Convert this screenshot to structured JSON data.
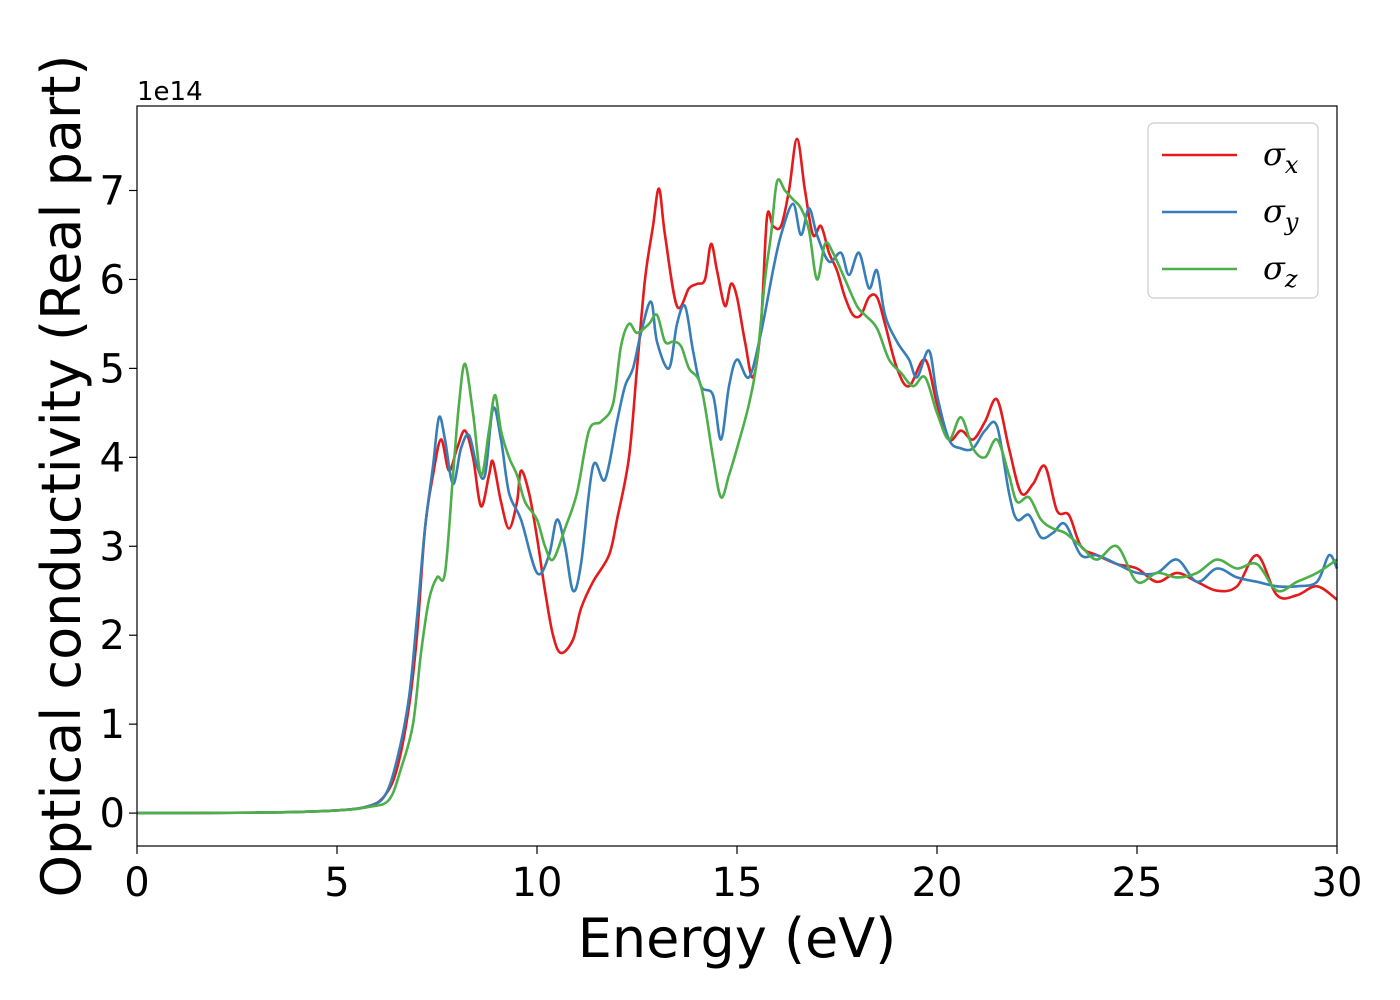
{
  "chart_data": {
    "type": "line",
    "title": "",
    "xlabel": "Energy (eV)",
    "ylabel": "Optical conductivity (Real part)",
    "y_offset_text": "1e14",
    "xlim": [
      0,
      30
    ],
    "ylim": [
      -0.37,
      7.95
    ],
    "xticks": [
      0,
      5,
      10,
      15,
      20,
      25,
      30
    ],
    "yticks": [
      0,
      1,
      2,
      3,
      4,
      5,
      6,
      7
    ],
    "grid": false,
    "legend_position": "top-right",
    "series": [
      {
        "name": "σx",
        "label_base": "σ",
        "label_sub": "x",
        "color": "#e41a1c",
        "points": [
          [
            0,
            0
          ],
          [
            3,
            0.005
          ],
          [
            5,
            0.03
          ],
          [
            5.8,
            0.08
          ],
          [
            6.2,
            0.2
          ],
          [
            6.5,
            0.5
          ],
          [
            6.8,
            1.2
          ],
          [
            7.0,
            2.0
          ],
          [
            7.2,
            3.2
          ],
          [
            7.4,
            3.8
          ],
          [
            7.6,
            4.2
          ],
          [
            7.8,
            3.85
          ],
          [
            8.0,
            4.1
          ],
          [
            8.2,
            4.3
          ],
          [
            8.4,
            4.0
          ],
          [
            8.6,
            3.45
          ],
          [
            8.8,
            3.8
          ],
          [
            8.9,
            3.95
          ],
          [
            9.1,
            3.5
          ],
          [
            9.3,
            3.2
          ],
          [
            9.5,
            3.5
          ],
          [
            9.6,
            3.85
          ],
          [
            9.8,
            3.6
          ],
          [
            10.0,
            3.1
          ],
          [
            10.2,
            2.5
          ],
          [
            10.4,
            2.0
          ],
          [
            10.6,
            1.8
          ],
          [
            10.9,
            1.95
          ],
          [
            11.1,
            2.3
          ],
          [
            11.4,
            2.6
          ],
          [
            11.8,
            2.9
          ],
          [
            12.0,
            3.3
          ],
          [
            12.3,
            4.0
          ],
          [
            12.5,
            5.0
          ],
          [
            12.7,
            6.0
          ],
          [
            12.9,
            6.6
          ],
          [
            13.05,
            7.02
          ],
          [
            13.2,
            6.5
          ],
          [
            13.5,
            5.7
          ],
          [
            13.8,
            5.9
          ],
          [
            14.0,
            5.95
          ],
          [
            14.2,
            6.0
          ],
          [
            14.35,
            6.4
          ],
          [
            14.5,
            6.1
          ],
          [
            14.7,
            5.7
          ],
          [
            14.85,
            5.95
          ],
          [
            15.0,
            5.8
          ],
          [
            15.2,
            5.3
          ],
          [
            15.4,
            4.9
          ],
          [
            15.6,
            5.5
          ],
          [
            15.75,
            6.7
          ],
          [
            15.9,
            6.6
          ],
          [
            16.1,
            6.6
          ],
          [
            16.3,
            7.0
          ],
          [
            16.5,
            7.58
          ],
          [
            16.7,
            7.0
          ],
          [
            16.9,
            6.5
          ],
          [
            17.1,
            6.6
          ],
          [
            17.3,
            6.3
          ],
          [
            17.5,
            6.1
          ],
          [
            17.7,
            5.8
          ],
          [
            17.9,
            5.6
          ],
          [
            18.1,
            5.6
          ],
          [
            18.3,
            5.8
          ],
          [
            18.5,
            5.8
          ],
          [
            18.7,
            5.5
          ],
          [
            19.0,
            5.0
          ],
          [
            19.3,
            4.8
          ],
          [
            19.7,
            5.1
          ],
          [
            20.0,
            4.6
          ],
          [
            20.3,
            4.2
          ],
          [
            20.6,
            4.3
          ],
          [
            20.9,
            4.2
          ],
          [
            21.2,
            4.4
          ],
          [
            21.5,
            4.65
          ],
          [
            21.8,
            4.1
          ],
          [
            22.1,
            3.6
          ],
          [
            22.4,
            3.7
          ],
          [
            22.7,
            3.9
          ],
          [
            23.0,
            3.4
          ],
          [
            23.3,
            3.35
          ],
          [
            23.6,
            3.0
          ],
          [
            24.0,
            2.9
          ],
          [
            24.5,
            2.8
          ],
          [
            25.0,
            2.75
          ],
          [
            25.5,
            2.6
          ],
          [
            26.0,
            2.7
          ],
          [
            26.5,
            2.6
          ],
          [
            27.0,
            2.5
          ],
          [
            27.5,
            2.55
          ],
          [
            28.0,
            2.9
          ],
          [
            28.5,
            2.45
          ],
          [
            29.0,
            2.45
          ],
          [
            29.5,
            2.55
          ],
          [
            30.0,
            2.4
          ]
        ]
      },
      {
        "name": "σy",
        "label_base": "σ",
        "label_sub": "y",
        "color": "#377eb8",
        "points": [
          [
            0,
            0
          ],
          [
            3,
            0.005
          ],
          [
            5,
            0.03
          ],
          [
            5.8,
            0.08
          ],
          [
            6.2,
            0.2
          ],
          [
            6.5,
            0.6
          ],
          [
            6.8,
            1.3
          ],
          [
            7.0,
            2.2
          ],
          [
            7.2,
            3.2
          ],
          [
            7.4,
            3.9
          ],
          [
            7.55,
            4.45
          ],
          [
            7.7,
            4.2
          ],
          [
            7.9,
            3.7
          ],
          [
            8.1,
            4.1
          ],
          [
            8.3,
            4.25
          ],
          [
            8.5,
            3.9
          ],
          [
            8.7,
            3.8
          ],
          [
            8.9,
            4.55
          ],
          [
            9.1,
            4.2
          ],
          [
            9.3,
            3.6
          ],
          [
            9.6,
            3.3
          ],
          [
            10.0,
            2.7
          ],
          [
            10.3,
            2.9
          ],
          [
            10.5,
            3.3
          ],
          [
            10.7,
            3.0
          ],
          [
            10.9,
            2.5
          ],
          [
            11.1,
            2.8
          ],
          [
            11.4,
            3.9
          ],
          [
            11.7,
            3.75
          ],
          [
            12.0,
            4.4
          ],
          [
            12.2,
            4.8
          ],
          [
            12.4,
            5.0
          ],
          [
            12.6,
            5.4
          ],
          [
            12.85,
            5.75
          ],
          [
            13.0,
            5.3
          ],
          [
            13.3,
            5.0
          ],
          [
            13.5,
            5.5
          ],
          [
            13.7,
            5.7
          ],
          [
            13.9,
            5.2
          ],
          [
            14.1,
            4.8
          ],
          [
            14.4,
            4.7
          ],
          [
            14.6,
            4.2
          ],
          [
            14.8,
            4.8
          ],
          [
            15.0,
            5.1
          ],
          [
            15.3,
            4.9
          ],
          [
            15.6,
            5.4
          ],
          [
            15.9,
            6.1
          ],
          [
            16.1,
            6.5
          ],
          [
            16.4,
            6.85
          ],
          [
            16.6,
            6.5
          ],
          [
            16.8,
            6.8
          ],
          [
            17.0,
            6.5
          ],
          [
            17.3,
            6.2
          ],
          [
            17.6,
            6.3
          ],
          [
            17.8,
            6.05
          ],
          [
            18.05,
            6.3
          ],
          [
            18.3,
            5.9
          ],
          [
            18.5,
            6.1
          ],
          [
            18.7,
            5.6
          ],
          [
            19.0,
            5.3
          ],
          [
            19.3,
            5.1
          ],
          [
            19.5,
            4.9
          ],
          [
            19.8,
            5.2
          ],
          [
            20.0,
            4.7
          ],
          [
            20.3,
            4.2
          ],
          [
            20.6,
            4.1
          ],
          [
            20.9,
            4.1
          ],
          [
            21.2,
            4.3
          ],
          [
            21.5,
            4.35
          ],
          [
            21.8,
            3.6
          ],
          [
            22.0,
            3.3
          ],
          [
            22.3,
            3.35
          ],
          [
            22.6,
            3.1
          ],
          [
            22.9,
            3.15
          ],
          [
            23.2,
            3.25
          ],
          [
            23.6,
            2.9
          ],
          [
            24.0,
            2.9
          ],
          [
            24.5,
            2.8
          ],
          [
            25.0,
            2.7
          ],
          [
            25.5,
            2.7
          ],
          [
            26.0,
            2.85
          ],
          [
            26.5,
            2.6
          ],
          [
            27.0,
            2.75
          ],
          [
            27.5,
            2.65
          ],
          [
            28.0,
            2.6
          ],
          [
            28.5,
            2.55
          ],
          [
            29.0,
            2.55
          ],
          [
            29.5,
            2.6
          ],
          [
            29.8,
            2.9
          ],
          [
            30.0,
            2.75
          ]
        ]
      },
      {
        "name": "σz",
        "label_base": "σ",
        "label_sub": "z",
        "color": "#4daf4a",
        "points": [
          [
            0,
            0
          ],
          [
            3,
            0.005
          ],
          [
            5,
            0.03
          ],
          [
            5.8,
            0.07
          ],
          [
            6.3,
            0.15
          ],
          [
            6.6,
            0.5
          ],
          [
            6.9,
            1.0
          ],
          [
            7.1,
            1.8
          ],
          [
            7.3,
            2.4
          ],
          [
            7.5,
            2.65
          ],
          [
            7.7,
            2.7
          ],
          [
            7.9,
            3.8
          ],
          [
            8.05,
            4.6
          ],
          [
            8.2,
            5.05
          ],
          [
            8.4,
            4.5
          ],
          [
            8.6,
            3.8
          ],
          [
            8.8,
            4.3
          ],
          [
            8.95,
            4.7
          ],
          [
            9.1,
            4.3
          ],
          [
            9.3,
            4.0
          ],
          [
            9.5,
            3.8
          ],
          [
            9.7,
            3.5
          ],
          [
            10.0,
            3.3
          ],
          [
            10.2,
            3.0
          ],
          [
            10.4,
            2.85
          ],
          [
            10.7,
            3.2
          ],
          [
            11.0,
            3.6
          ],
          [
            11.3,
            4.3
          ],
          [
            11.6,
            4.4
          ],
          [
            11.9,
            4.6
          ],
          [
            12.1,
            5.25
          ],
          [
            12.3,
            5.5
          ],
          [
            12.5,
            5.4
          ],
          [
            12.8,
            5.5
          ],
          [
            13.0,
            5.6
          ],
          [
            13.2,
            5.3
          ],
          [
            13.4,
            5.3
          ],
          [
            13.6,
            5.25
          ],
          [
            13.8,
            5.0
          ],
          [
            14.1,
            4.8
          ],
          [
            14.4,
            4.0
          ],
          [
            14.6,
            3.55
          ],
          [
            14.8,
            3.8
          ],
          [
            15.0,
            4.1
          ],
          [
            15.3,
            4.6
          ],
          [
            15.5,
            5.1
          ],
          [
            15.7,
            6.0
          ],
          [
            15.85,
            6.5
          ],
          [
            16.0,
            7.1
          ],
          [
            16.2,
            7.0
          ],
          [
            16.4,
            6.9
          ],
          [
            16.6,
            6.8
          ],
          [
            16.8,
            6.55
          ],
          [
            17.0,
            6.0
          ],
          [
            17.2,
            6.4
          ],
          [
            17.4,
            6.3
          ],
          [
            17.7,
            6.0
          ],
          [
            18.0,
            5.7
          ],
          [
            18.2,
            5.6
          ],
          [
            18.5,
            5.45
          ],
          [
            18.8,
            5.1
          ],
          [
            19.1,
            4.95
          ],
          [
            19.4,
            4.8
          ],
          [
            19.7,
            4.9
          ],
          [
            20.0,
            4.5
          ],
          [
            20.3,
            4.2
          ],
          [
            20.6,
            4.45
          ],
          [
            20.9,
            4.1
          ],
          [
            21.2,
            4.0
          ],
          [
            21.5,
            4.2
          ],
          [
            21.8,
            3.8
          ],
          [
            22.0,
            3.5
          ],
          [
            22.3,
            3.55
          ],
          [
            22.6,
            3.3
          ],
          [
            22.9,
            3.2
          ],
          [
            23.2,
            3.15
          ],
          [
            23.6,
            3.0
          ],
          [
            24.0,
            2.85
          ],
          [
            24.5,
            3.0
          ],
          [
            25.0,
            2.6
          ],
          [
            25.5,
            2.7
          ],
          [
            26.0,
            2.65
          ],
          [
            26.5,
            2.7
          ],
          [
            27.0,
            2.85
          ],
          [
            27.5,
            2.75
          ],
          [
            28.0,
            2.8
          ],
          [
            28.5,
            2.5
          ],
          [
            29.0,
            2.6
          ],
          [
            29.5,
            2.7
          ],
          [
            30.0,
            2.85
          ]
        ]
      }
    ]
  }
}
